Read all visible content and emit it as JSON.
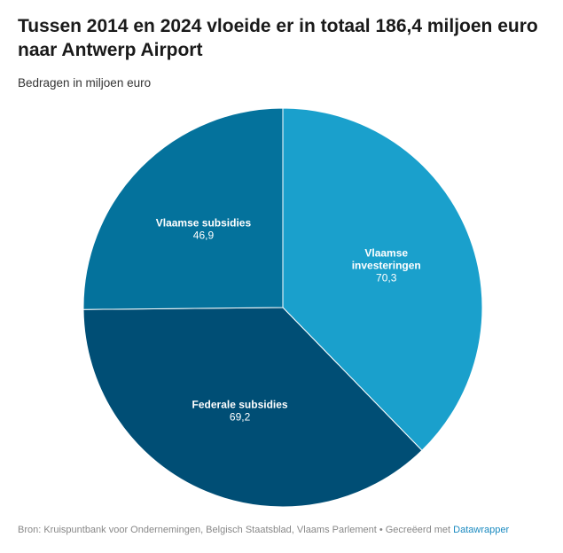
{
  "header": {
    "title": "Tussen 2014 en 2024 vloeide er in totaal 186,4 miljoen euro naar Antwerp Airport",
    "subtitle": "Bedragen in miljoen euro"
  },
  "chart_data": {
    "type": "pie",
    "slices": [
      {
        "label": [
          "Vlaamse",
          "investeringen"
        ],
        "value": 70.3,
        "display": "70,3",
        "color": "#1aa0cc"
      },
      {
        "label": [
          "Federale subsidies"
        ],
        "value": 69.2,
        "display": "69,2",
        "color": "#004e75"
      },
      {
        "label": [
          "Vlaamse subsidies"
        ],
        "value": 46.9,
        "display": "46,9",
        "color": "#04729c"
      }
    ]
  },
  "footer": {
    "source": "Bron: Kruispuntbank voor Ondernemingen, Belgisch Staatsblad, Vlaams Parlement • Gecreëerd met",
    "credit": "Datawrapper"
  }
}
